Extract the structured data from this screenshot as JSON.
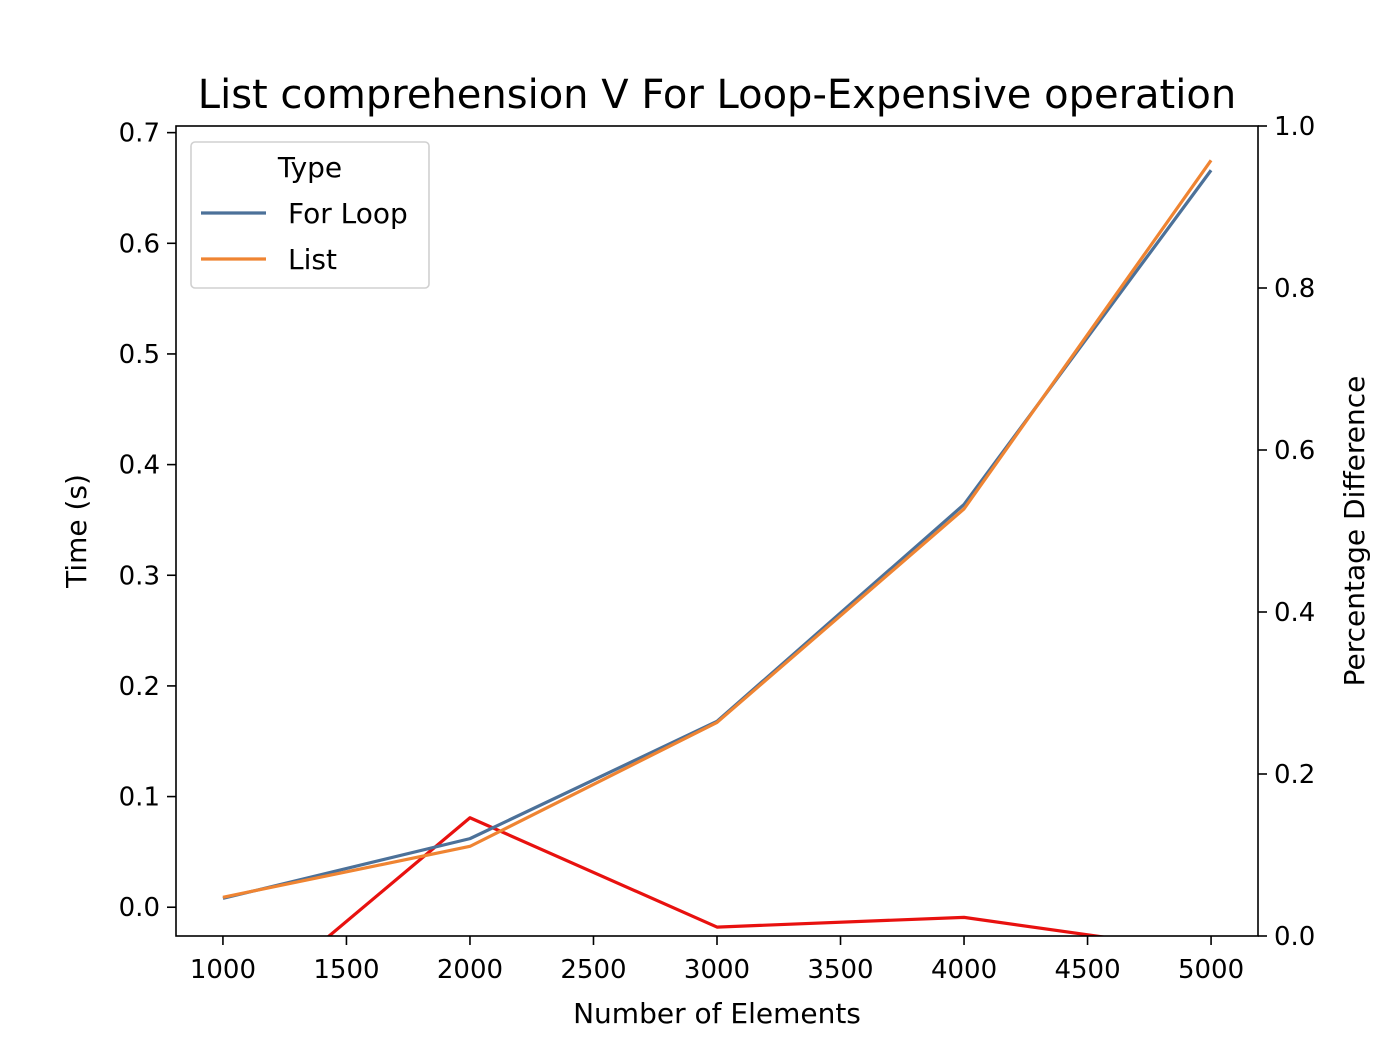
{
  "chart_data": {
    "type": "line",
    "title": "List comprehension V For Loop-Expensive operation",
    "xlabel": "Number of Elements",
    "ylabel": "Time (s)",
    "y2label": "Percentage Difference",
    "xlim": [
      810,
      5190
    ],
    "ylim": [
      -0.026,
      0.706
    ],
    "y2lim": [
      0.0,
      1.0
    ],
    "x_ticks": [
      1000,
      1500,
      2000,
      2500,
      3000,
      3500,
      4000,
      4500,
      5000
    ],
    "x_tick_labels": [
      "1000",
      "1500",
      "2000",
      "2500",
      "3000",
      "3500",
      "4000",
      "4500",
      "5000"
    ],
    "y_ticks": [
      0.0,
      0.1,
      0.2,
      0.3,
      0.4,
      0.5,
      0.6,
      0.7
    ],
    "y_tick_labels": [
      "0.0",
      "0.1",
      "0.2",
      "0.3",
      "0.4",
      "0.5",
      "0.6",
      "0.7"
    ],
    "y2_ticks": [
      0.0,
      0.2,
      0.4,
      0.6,
      0.8,
      1.0
    ],
    "y2_tick_labels": [
      "0.0",
      "0.2",
      "0.4",
      "0.6",
      "0.8",
      "1.0"
    ],
    "legend": {
      "title": "Type",
      "location": "upper left"
    },
    "grid": false,
    "x": [
      1000,
      2000,
      3000,
      4000,
      5000
    ],
    "series": [
      {
        "name": "For Loop",
        "axis": "left",
        "color": "#4c7199",
        "values": [
          0.008,
          0.062,
          0.168,
          0.364,
          0.666
        ]
      },
      {
        "name": "List",
        "axis": "left",
        "color": "#ef8432",
        "values": [
          0.009,
          0.055,
          0.167,
          0.36,
          0.675
        ]
      }
    ],
    "secondary_series": {
      "axis": "right",
      "color": "#e8110f",
      "x": [
        1000,
        2000,
        3000,
        4000,
        5000
      ],
      "values": [
        -0.11,
        0.146,
        0.011,
        0.023,
        -0.02
      ]
    }
  }
}
